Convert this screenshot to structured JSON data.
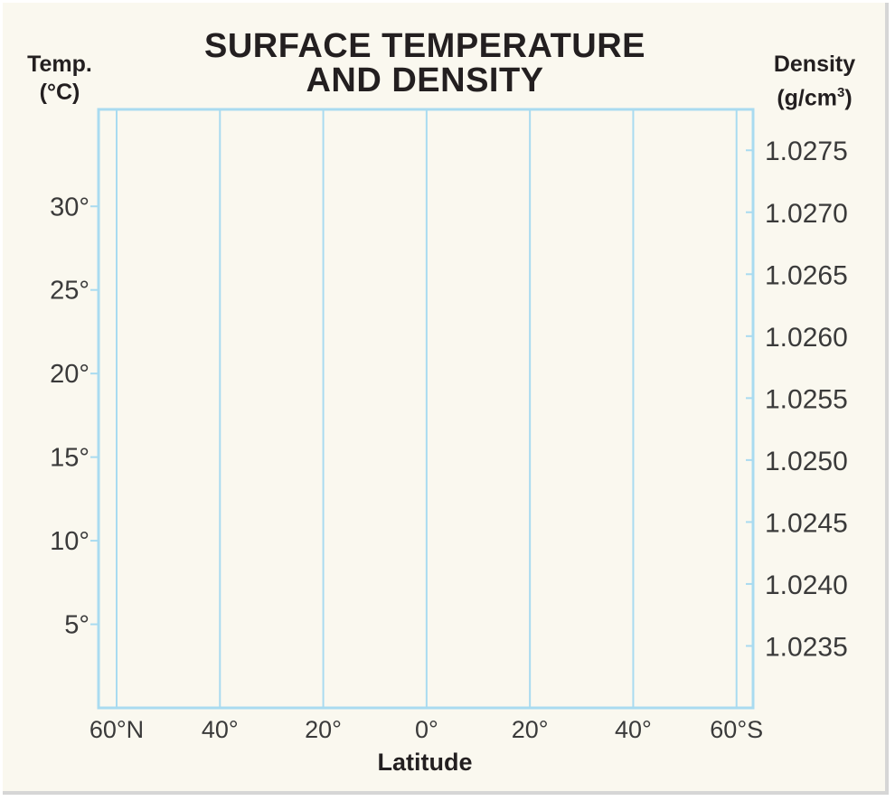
{
  "chart_data": {
    "type": "line",
    "title_line1": "SURFACE TEMPERATURE",
    "title_line2": "AND DENSITY",
    "left_axis": {
      "label_line1": "Temp.",
      "label_line2": "(°C)",
      "ticks": [
        {
          "value": 30,
          "label": "30°"
        },
        {
          "value": 25,
          "label": "25°"
        },
        {
          "value": 20,
          "label": "20°"
        },
        {
          "value": 15,
          "label": "15°"
        },
        {
          "value": 10,
          "label": "10°"
        },
        {
          "value": 5,
          "label": "5°"
        }
      ],
      "range": [
        0,
        35.8
      ]
    },
    "right_axis": {
      "label_line1": "Density",
      "label_line2": "(g/cm",
      "label_sup": "3",
      "label_close": ")",
      "ticks": [
        {
          "value": 1.0275,
          "label": "1.0275"
        },
        {
          "value": 1.027,
          "label": "1.0270"
        },
        {
          "value": 1.0265,
          "label": "1.0265"
        },
        {
          "value": 1.026,
          "label": "1.0260"
        },
        {
          "value": 1.0255,
          "label": "1.0255"
        },
        {
          "value": 1.025,
          "label": "1.0250"
        },
        {
          "value": 1.0245,
          "label": "1.0245"
        },
        {
          "value": 1.024,
          "label": "1.0240"
        },
        {
          "value": 1.0235,
          "label": "1.0235"
        }
      ],
      "range": [
        1.023,
        1.02783
      ]
    },
    "x_axis": {
      "label": "Latitude",
      "ticks": [
        {
          "value": 60,
          "label": "60°N"
        },
        {
          "value": 40,
          "label": "40°"
        },
        {
          "value": 20,
          "label": "20°"
        },
        {
          "value": 0,
          "label": "0°"
        },
        {
          "value": -20,
          "label": "20°"
        },
        {
          "value": -40,
          "label": "40°"
        },
        {
          "value": -60,
          "label": "60°S"
        }
      ],
      "range": [
        63.5,
        -63.2
      ]
    },
    "series": [],
    "grid": "vertical",
    "colors": {
      "grid": "#a9dbf0",
      "text": "#3a3a3a",
      "heading": "#231f20",
      "background": "#faf8ef"
    }
  }
}
